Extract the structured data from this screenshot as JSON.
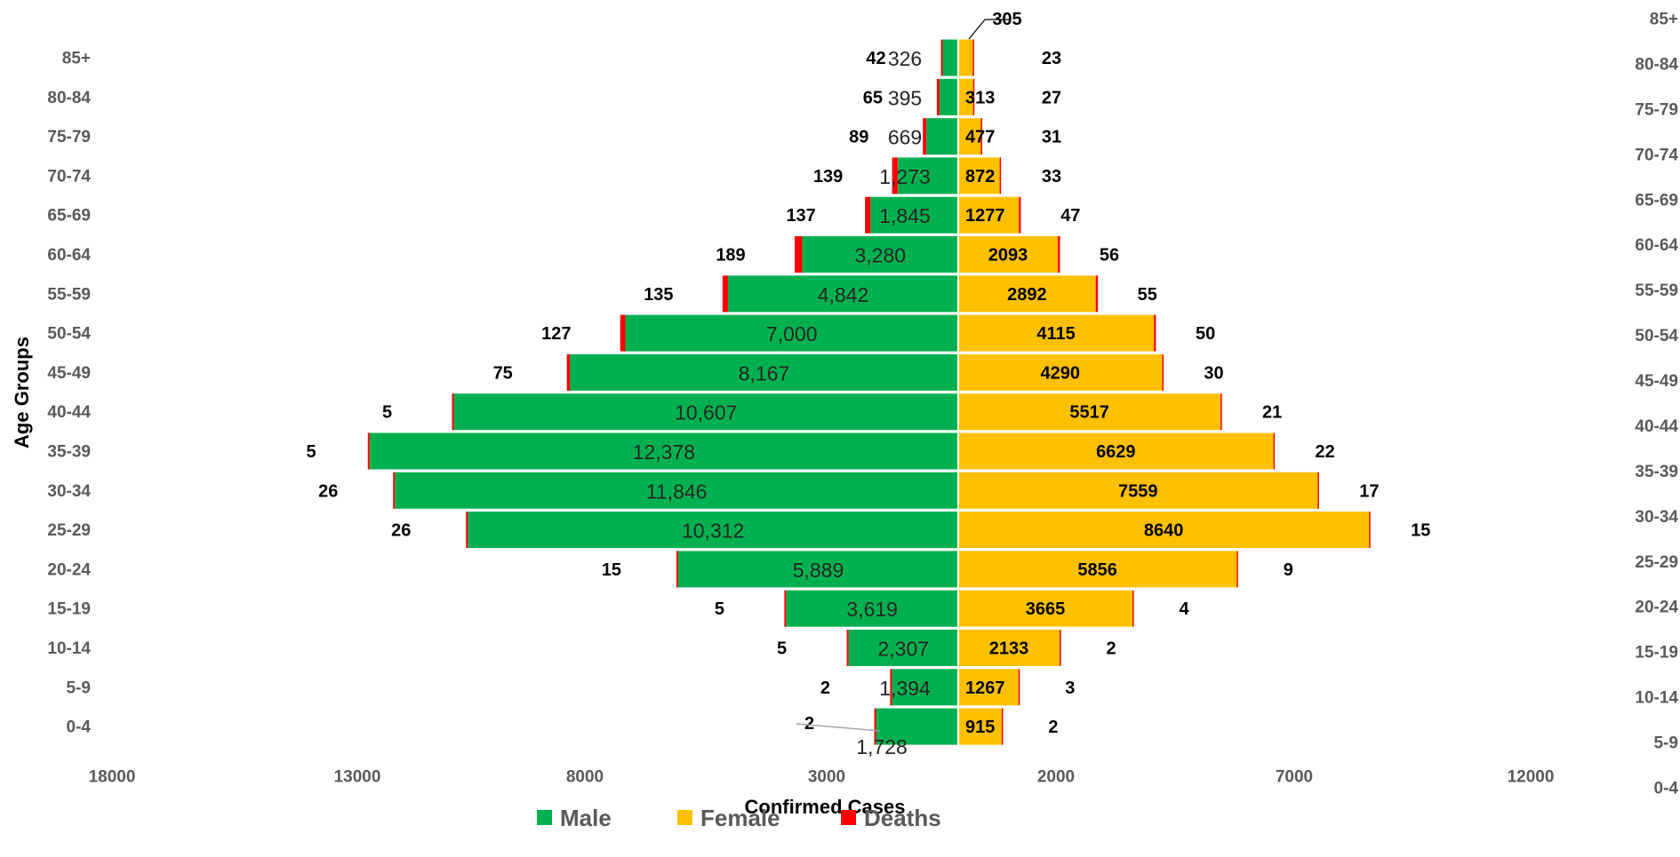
{
  "chart_data": {
    "type": "bar",
    "orientation": "horizontal",
    "layout": "population-pyramid",
    "categories": [
      "85+",
      "80-84",
      "75-79",
      "70-74",
      "65-69",
      "60-64",
      "55-59",
      "50-54",
      "45-49",
      "40-44",
      "35-39",
      "30-34",
      "25-29",
      "20-24",
      "15-19",
      "10-14",
      "5-9",
      "0-4"
    ],
    "secondary_categories": [
      "85+",
      "80-84",
      "75-79",
      "70-74",
      "65-69",
      "60-64",
      "55-59",
      "50-54",
      "45-49",
      "40-44",
      "35-39",
      "30-34",
      "25-29",
      "20-24",
      "15-19",
      "10-14",
      "5-9",
      "0-4"
    ],
    "series": [
      {
        "name": "Male",
        "color": "#00B050",
        "values": [
          326,
          395,
          669,
          1273,
          1845,
          3280,
          4842,
          7000,
          8167,
          10607,
          12378,
          11846,
          10312,
          5889,
          3619,
          2307,
          1394,
          1728
        ],
        "labels": [
          "326",
          "395",
          "669",
          "1,273",
          "1,845",
          "3,280",
          "4,842",
          "7,000",
          "8,167",
          "10,607",
          "12,378",
          "11,846",
          "10,312",
          "5,889",
          "3,619",
          "2,307",
          "1,394",
          "1,728"
        ]
      },
      {
        "name": "Female",
        "color": "#FFC000",
        "values": [
          305,
          313,
          477,
          872,
          1277,
          2093,
          2892,
          4115,
          4290,
          5517,
          6629,
          7559,
          8640,
          5856,
          3665,
          2133,
          1267,
          915
        ],
        "labels": [
          "305",
          "313",
          "477",
          "872",
          "1277",
          "2093",
          "2892",
          "4115",
          "4290",
          "5517",
          "6629",
          "7559",
          "8640",
          "5856",
          "3665",
          "2133",
          "1267",
          "915"
        ]
      },
      {
        "name": "Deaths",
        "color": "#FF0000",
        "male": [
          42,
          65,
          89,
          139,
          137,
          189,
          135,
          127,
          75,
          5,
          5,
          26,
          26,
          15,
          5,
          5,
          2,
          2
        ],
        "male_labels": [
          "42",
          "65",
          "89",
          "139",
          "137",
          "189",
          "135",
          "127",
          "75",
          "5",
          "5",
          "26",
          "26",
          "15",
          "5",
          "5",
          "2",
          "2"
        ],
        "female": [
          23,
          27,
          31,
          33,
          47,
          56,
          55,
          50,
          30,
          21,
          22,
          17,
          15,
          9,
          4,
          2,
          3,
          2
        ],
        "female_labels": [
          "23",
          "27",
          "31",
          "33",
          "47",
          "56",
          "55",
          "50",
          "30",
          "21",
          "22",
          "17",
          "15",
          "9",
          "4",
          "2",
          "3",
          "2"
        ]
      }
    ],
    "x_ticks": [
      "18000",
      "13000",
      "8000",
      "3000",
      "2000",
      "7000",
      "12000"
    ],
    "xlabel": "Confirmed Cases",
    "ylabel": "Age Groups",
    "legend": {
      "position": "bottom",
      "items": [
        "Male",
        "Female",
        "Deaths"
      ]
    },
    "grid": false
  }
}
